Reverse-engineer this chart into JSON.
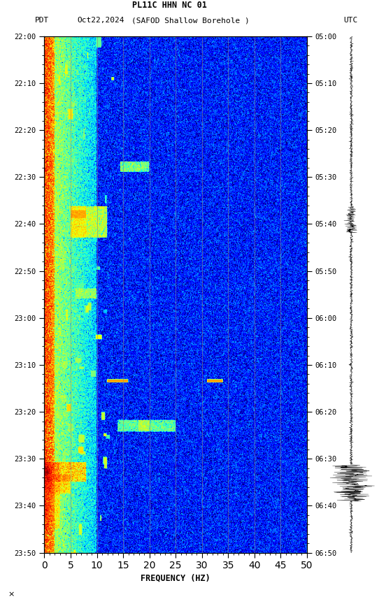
{
  "title_line1": "PL11C HHN NC 01",
  "title_line2_left": "PDT   Oct22,2024      (SAFOD Shallow Borehole )",
  "title_line2_right": "UTC",
  "xlabel": "FREQUENCY (HZ)",
  "freq_min": 0,
  "freq_max": 50,
  "freq_ticks": [
    0,
    5,
    10,
    15,
    20,
    25,
    30,
    35,
    40,
    45,
    50
  ],
  "pdt_ticks": [
    "22:00",
    "22:10",
    "22:20",
    "22:30",
    "22:40",
    "22:50",
    "23:00",
    "23:10",
    "23:20",
    "23:30",
    "23:40",
    "23:50"
  ],
  "utc_ticks": [
    "05:00",
    "05:10",
    "05:20",
    "05:30",
    "05:40",
    "05:50",
    "06:00",
    "06:10",
    "06:20",
    "06:30",
    "06:40",
    "06:50"
  ],
  "grid_freq": [
    5,
    10,
    15,
    20,
    25,
    30,
    35,
    40,
    45
  ],
  "fig_width": 5.52,
  "fig_height": 8.64,
  "dpi": 100,
  "colormap": "jet",
  "vmin": -3.5,
  "vmax": 1.5
}
